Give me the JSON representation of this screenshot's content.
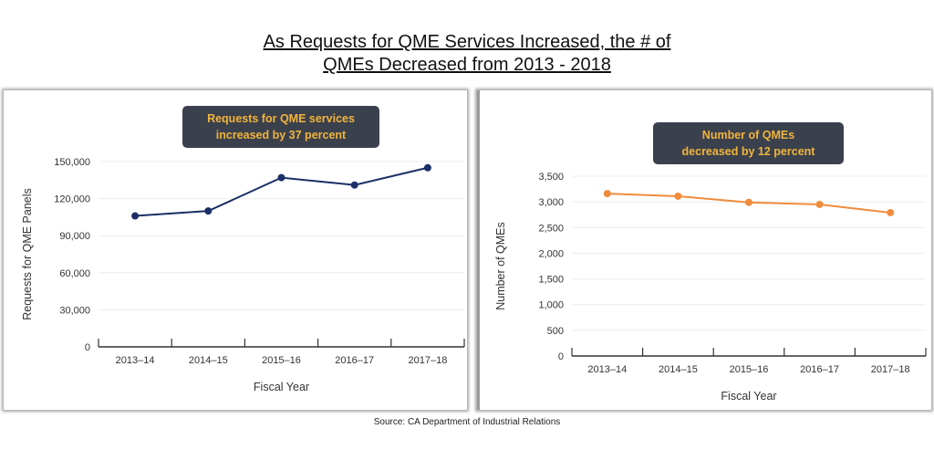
{
  "title_line1": "As Requests for QME Services Increased, the # of",
  "title_line2": "QMEs Decreased from 2013 - 2018",
  "source": "Source: CA Department of Industrial Relations",
  "chart_data": [
    {
      "type": "line",
      "callout_line1": "Requests for QME services",
      "callout_line2": "increased by 37 percent",
      "xlabel": "Fiscal Year",
      "ylabel": "Requests for QME Panels",
      "categories": [
        "2013–14",
        "2014–15",
        "2015–16",
        "2016–17",
        "2017–18"
      ],
      "values": [
        106000,
        110000,
        137000,
        131000,
        145000
      ],
      "ylim": [
        0,
        150000
      ],
      "yticks": [
        0,
        30000,
        60000,
        90000,
        120000,
        150000
      ],
      "ytick_labels": [
        "0",
        "30,000",
        "60,000",
        "90,000",
        "120,000",
        "150,000"
      ],
      "grid": true,
      "color": "#1b2f66"
    },
    {
      "type": "line",
      "callout_line1": "Number of QMEs",
      "callout_line2": "decreased by 12 percent",
      "xlabel": "Fiscal Year",
      "ylabel": "Number of QMEs",
      "categories": [
        "2013–14",
        "2014–15",
        "2015–16",
        "2016–17",
        "2017–18"
      ],
      "values": [
        3160,
        3110,
        2990,
        2950,
        2790
      ],
      "ylim": [
        0,
        3500
      ],
      "yticks": [
        0,
        500,
        1000,
        1500,
        2000,
        2500,
        3000,
        3500
      ],
      "ytick_labels": [
        "0",
        "500",
        "1,000",
        "1,500",
        "2,000",
        "2,500",
        "3,000",
        "3,500"
      ],
      "grid": true,
      "color": "#ef8c3c"
    }
  ]
}
